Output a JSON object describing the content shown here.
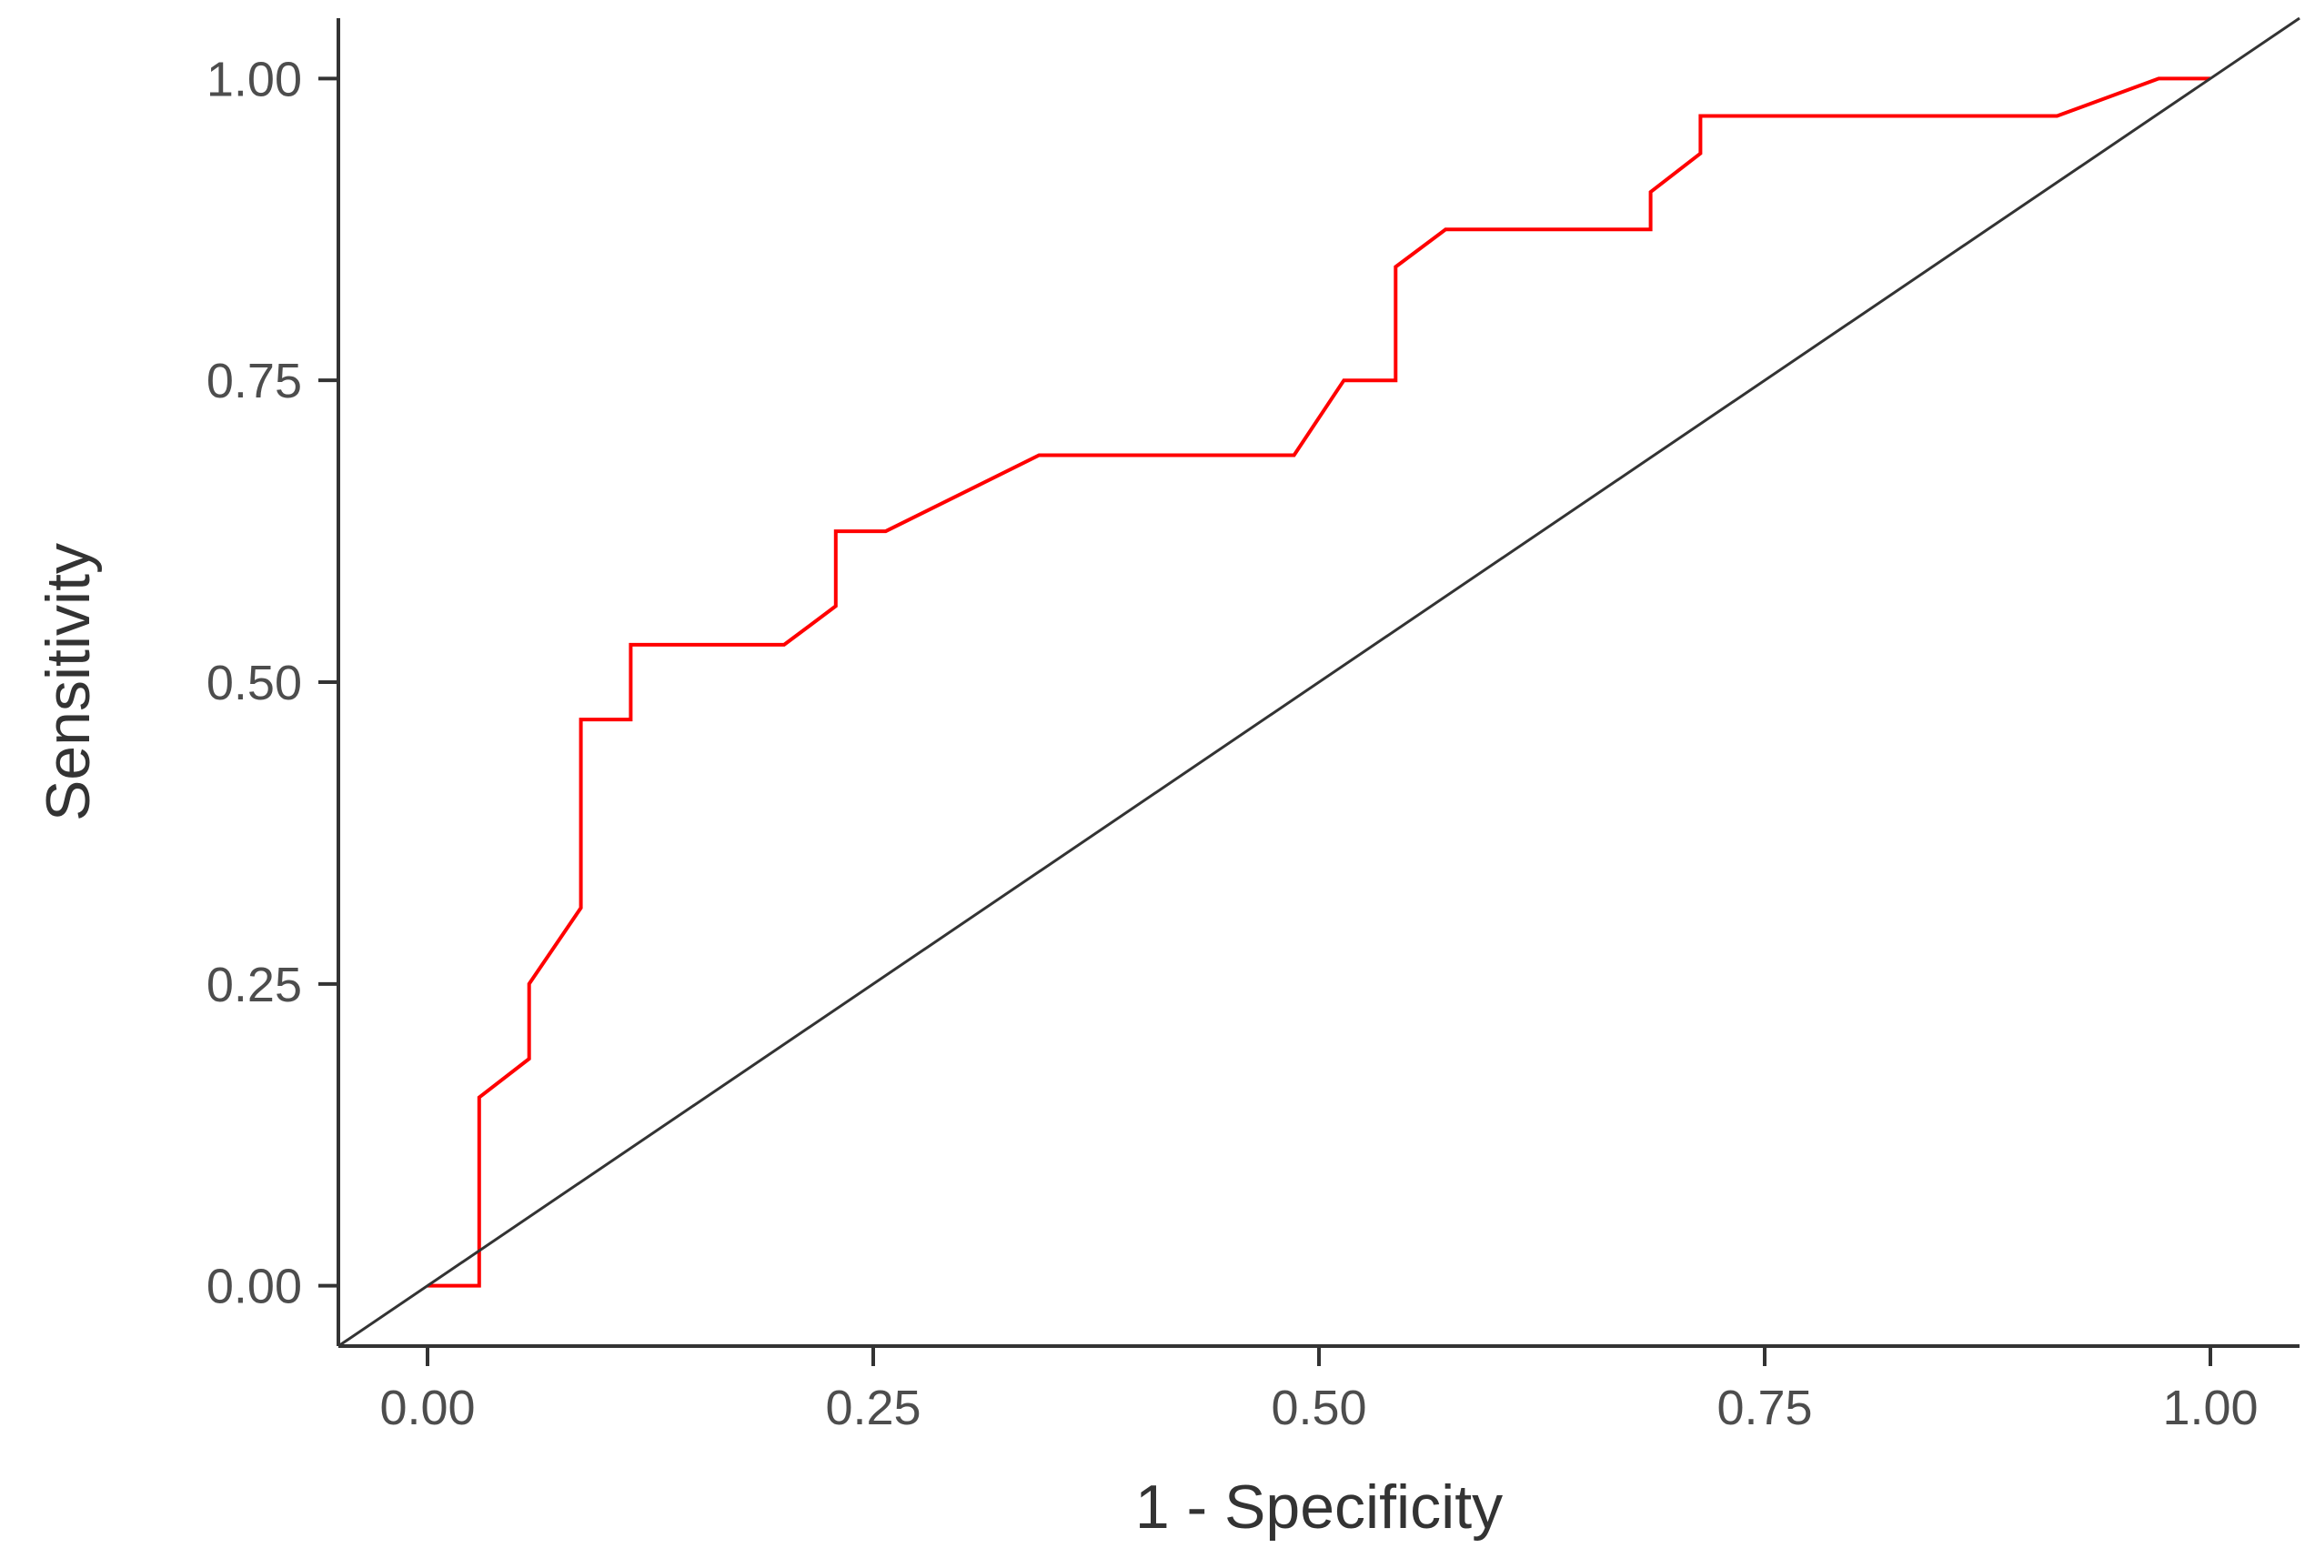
{
  "chart_data": {
    "type": "line",
    "title": "",
    "xlabel": "1 - Specificity",
    "ylabel": "Sensitivity",
    "xlim": [
      -0.05,
      1.05
    ],
    "ylim": [
      -0.05,
      1.05
    ],
    "x_ticks": [
      "0.00",
      "0.25",
      "0.50",
      "0.75",
      "1.00"
    ],
    "y_ticks": [
      "0.00",
      "0.25",
      "0.50",
      "0.75",
      "1.00"
    ],
    "grid": false,
    "legend": "none",
    "series": [
      {
        "color": "#ff0000",
        "x": [
          0.0,
          0.029,
          0.029,
          0.057,
          0.057,
          0.086,
          0.086,
          0.114,
          0.114,
          0.2,
          0.229,
          0.229,
          0.257,
          0.343,
          0.486,
          0.514,
          0.543,
          0.543,
          0.571,
          0.686,
          0.686,
          0.714,
          0.714,
          0.914,
          0.971,
          1.0
        ],
        "y": [
          0.0,
          0.0,
          0.156,
          0.188,
          0.25,
          0.313,
          0.469,
          0.469,
          0.531,
          0.531,
          0.563,
          0.625,
          0.625,
          0.688,
          0.688,
          0.75,
          0.75,
          0.844,
          0.875,
          0.875,
          0.906,
          0.938,
          0.969,
          0.969,
          1.0,
          1.0
        ]
      },
      {
        "color": "#333333",
        "x": [
          -0.05,
          1.05
        ],
        "y": [
          -0.05,
          1.05
        ]
      }
    ]
  }
}
